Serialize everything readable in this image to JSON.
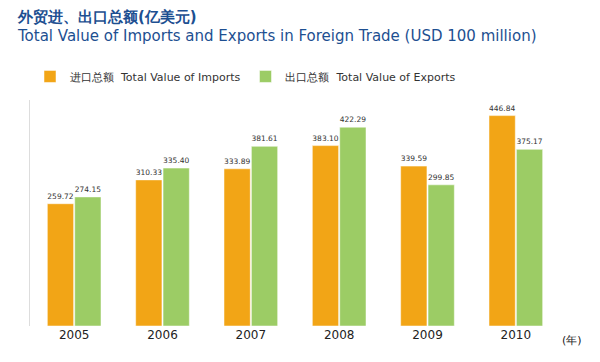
{
  "chart_data": {
    "type": "bar",
    "title": "外贸进、出口总额(亿美元)",
    "subtitle": "Total Value of Imports and Exports in Foreign Trade (USD 100 million)",
    "xlabel": "(年)",
    "categories": [
      "2005",
      "2006",
      "2007",
      "2008",
      "2009",
      "2010"
    ],
    "series": [
      {
        "name": "进口总额  Total Value of Imports",
        "color": "#f2a516",
        "values": [
          259.72,
          310.33,
          333.89,
          383.1,
          339.59,
          446.84
        ],
        "value_labels": [
          "259.72",
          "310.33",
          "333.89",
          "383.10",
          "339.59",
          "446.84"
        ]
      },
      {
        "name": "出口总额  Total Value of Exports",
        "color": "#9ccc65",
        "values": [
          274.15,
          335.4,
          381.61,
          422.29,
          299.85,
          375.17
        ],
        "value_labels": [
          "274.15",
          "335.40",
          "381.61",
          "422.29",
          "299.85",
          "375.17"
        ]
      }
    ],
    "ylim": [
      0,
      480
    ],
    "yticks": [],
    "grid": false,
    "legend": "top-left",
    "data_labels": true,
    "tick_labels": "x"
  }
}
